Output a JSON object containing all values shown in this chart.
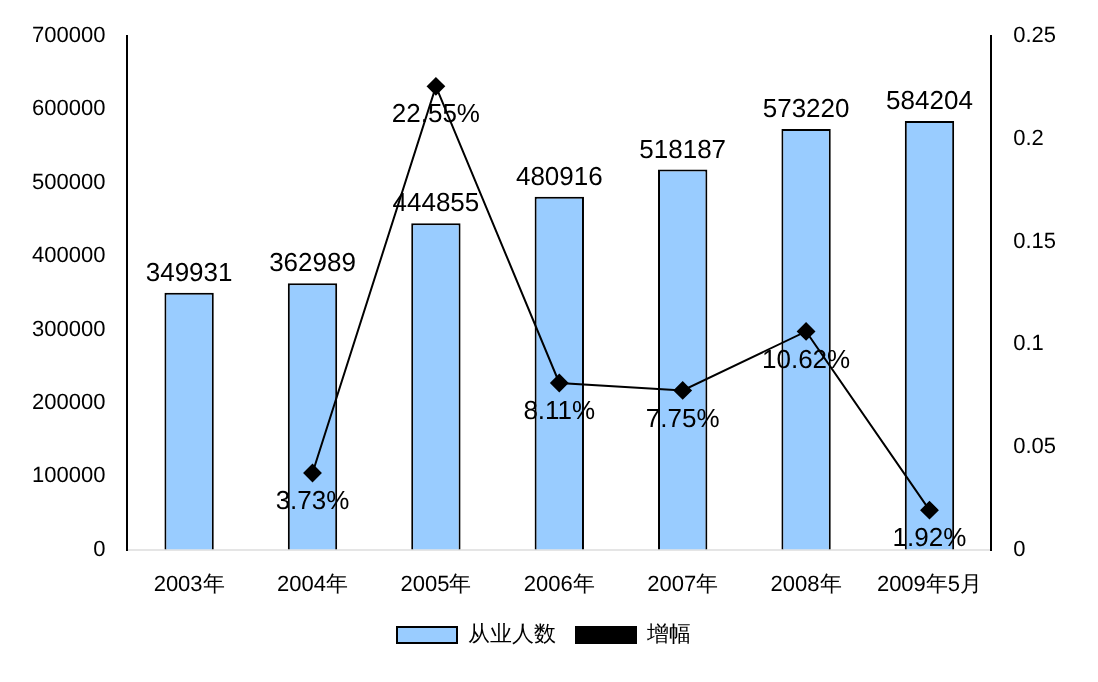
{
  "chart_data": {
    "type": "bar",
    "categories": [
      "2003年",
      "2004年",
      "2005年",
      "2006年",
      "2007年",
      "2008年",
      "2009年5月"
    ],
    "series": [
      {
        "name": "从业人数",
        "color": "#99ccff",
        "values": [
          349931,
          362989,
          444855,
          480916,
          518187,
          573220,
          584204
        ],
        "value_labels": [
          "349931",
          "362989",
          "444855",
          "480916",
          "518187",
          "573220",
          "584204"
        ]
      },
      {
        "name": "增幅",
        "type": "line",
        "axis": "y2",
        "color": "#000000",
        "marker": "diamond",
        "values": [
          null,
          0.0373,
          0.2255,
          0.0811,
          0.0775,
          0.1062,
          0.0192
        ],
        "value_labels": [
          null,
          "3.73%",
          "22.55%",
          "8.11%",
          "7.75%",
          "10.62%",
          "1.92%"
        ]
      }
    ],
    "ylim": [
      0,
      700000
    ],
    "yticks": [
      0,
      100000,
      200000,
      300000,
      400000,
      500000,
      600000,
      700000
    ],
    "y2lim": [
      0,
      0.25
    ],
    "y2ticks": [
      0,
      0.05,
      0.1,
      0.15,
      0.2,
      0.25
    ],
    "grid": false,
    "legend": "bottom"
  }
}
